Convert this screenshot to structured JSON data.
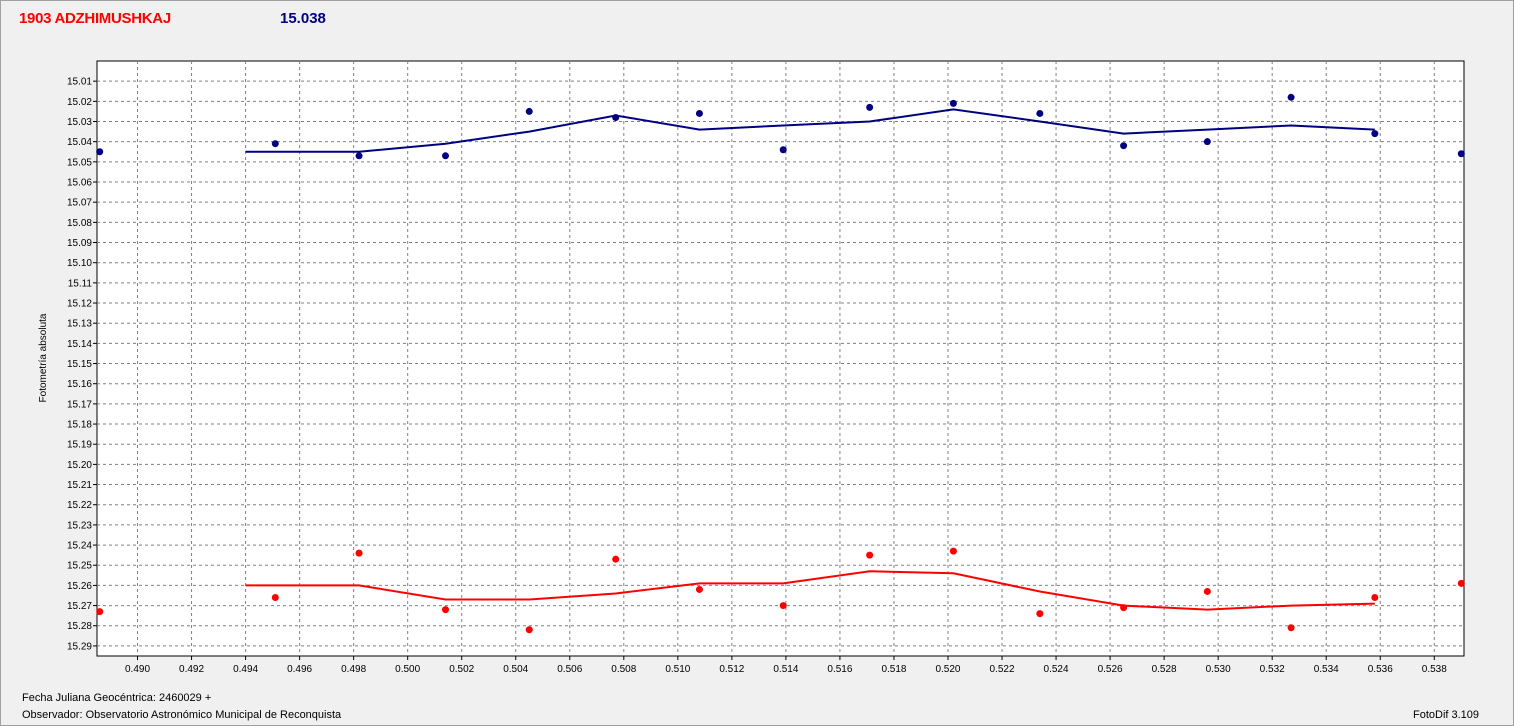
{
  "header": {
    "object_name": "1903 ADZHIMUSHKAJ",
    "mean_magnitude": "15.038"
  },
  "footer": {
    "julian_date_label": "Fecha Juliana Geocéntrica: 2460029 +",
    "observer_label": "Observador: Observatorio Astronómico Municipal de Reconquista",
    "software_version": "FotoDif 3.109"
  },
  "colors": {
    "blue_series": "#000080",
    "red_series": "#ff0000",
    "grid": "#808080"
  },
  "chart_data": {
    "type": "scatter",
    "ylabel": "Fotometría absoluta",
    "xlabel": "",
    "xlim": [
      0.4885,
      0.5391
    ],
    "ylim": [
      15.0,
      15.295
    ],
    "y_inverted": true,
    "grid": true,
    "x_ticks": [
      "0.490",
      "0.492",
      "0.494",
      "0.496",
      "0.498",
      "0.500",
      "0.502",
      "0.504",
      "0.506",
      "0.508",
      "0.510",
      "0.512",
      "0.514",
      "0.516",
      "0.518",
      "0.520",
      "0.522",
      "0.524",
      "0.526",
      "0.528",
      "0.530",
      "0.532",
      "0.534",
      "0.536",
      "0.538"
    ],
    "y_ticks": [
      "15.01",
      "15.02",
      "15.03",
      "15.04",
      "15.05",
      "15.06",
      "15.07",
      "15.08",
      "15.09",
      "15.10",
      "15.11",
      "15.12",
      "15.13",
      "15.14",
      "15.15",
      "15.16",
      "15.17",
      "15.18",
      "15.19",
      "15.20",
      "15.21",
      "15.22",
      "15.23",
      "15.24",
      "15.25",
      "15.26",
      "15.27",
      "15.28",
      "15.29"
    ],
    "series": [
      {
        "color": "#000080",
        "points": [
          [
            0.4886,
            15.045
          ],
          [
            0.4951,
            15.041
          ],
          [
            0.4982,
            15.047
          ],
          [
            0.5014,
            15.047
          ],
          [
            0.5045,
            15.025
          ],
          [
            0.5077,
            15.028
          ],
          [
            0.5108,
            15.026
          ],
          [
            0.5139,
            15.044
          ],
          [
            0.5171,
            15.023
          ],
          [
            0.5202,
            15.021
          ],
          [
            0.5234,
            15.026
          ],
          [
            0.5265,
            15.042
          ],
          [
            0.5296,
            15.04
          ],
          [
            0.5327,
            15.018
          ],
          [
            0.5358,
            15.036
          ],
          [
            0.539,
            15.046
          ]
        ],
        "trend": [
          [
            0.494,
            15.045
          ],
          [
            0.4982,
            15.045
          ],
          [
            0.5014,
            15.041
          ],
          [
            0.5045,
            15.035
          ],
          [
            0.5077,
            15.027
          ],
          [
            0.5108,
            15.034
          ],
          [
            0.5139,
            15.032
          ],
          [
            0.5171,
            15.03
          ],
          [
            0.5202,
            15.024
          ],
          [
            0.5234,
            15.03
          ],
          [
            0.5265,
            15.036
          ],
          [
            0.5296,
            15.034
          ],
          [
            0.5327,
            15.032
          ],
          [
            0.5358,
            15.034
          ]
        ]
      },
      {
        "color": "#ff0000",
        "points": [
          [
            0.4886,
            15.273
          ],
          [
            0.4951,
            15.266
          ],
          [
            0.4982,
            15.244
          ],
          [
            0.5014,
            15.272
          ],
          [
            0.5045,
            15.282
          ],
          [
            0.5077,
            15.247
          ],
          [
            0.5108,
            15.262
          ],
          [
            0.5139,
            15.27
          ],
          [
            0.5171,
            15.245
          ],
          [
            0.5202,
            15.243
          ],
          [
            0.5234,
            15.274
          ],
          [
            0.5265,
            15.271
          ],
          [
            0.5296,
            15.263
          ],
          [
            0.5327,
            15.281
          ],
          [
            0.5358,
            15.266
          ],
          [
            0.539,
            15.259
          ]
        ],
        "trend": [
          [
            0.494,
            15.26
          ],
          [
            0.4982,
            15.26
          ],
          [
            0.5014,
            15.267
          ],
          [
            0.5045,
            15.267
          ],
          [
            0.5077,
            15.264
          ],
          [
            0.5108,
            15.259
          ],
          [
            0.5139,
            15.259
          ],
          [
            0.5171,
            15.253
          ],
          [
            0.5202,
            15.254
          ],
          [
            0.5234,
            15.263
          ],
          [
            0.5265,
            15.27
          ],
          [
            0.5296,
            15.272
          ],
          [
            0.5327,
            15.27
          ],
          [
            0.5358,
            15.269
          ]
        ]
      }
    ]
  }
}
